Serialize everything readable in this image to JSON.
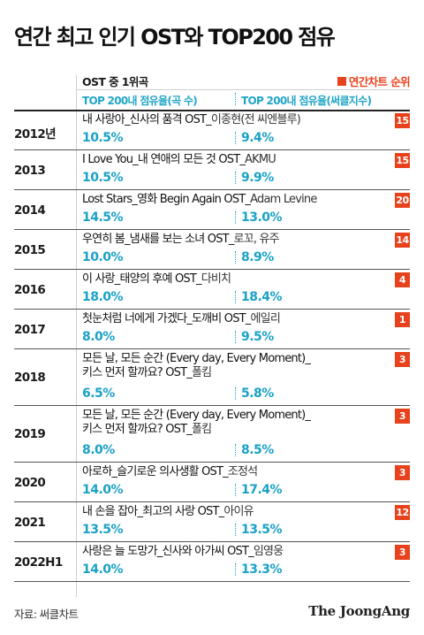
{
  "title": "연간 최고 인기 OST와 TOP200 점유",
  "header": {
    "ost_label": "OST 중 1위곡",
    "legend_label": "연간차트 순위",
    "col1_label": "TOP 200내 점유율(곡 수)",
    "col2_label": "TOP 200내 점유율(써클지수)"
  },
  "colors": {
    "accent_red": "#e8421c",
    "accent_blue": "#1aa2c6"
  },
  "rows": [
    {
      "year": "2012년",
      "song": "내 사랑아_신사의 품격 OST_",
      "artist": "이종현(전 씨엔블루)",
      "rank": "15",
      "share_count": "10.5%",
      "share_index": "9.4%"
    },
    {
      "year": "2013",
      "song": "I Love You_내 연애의 모든 것 OST_",
      "artist": "AKMU",
      "rank": "15",
      "share_count": "10.5%",
      "share_index": "9.9%"
    },
    {
      "year": "2014",
      "song": "Lost Stars_영화 Begin Again OST_",
      "artist": "Adam Levine",
      "rank": "20",
      "share_count": "14.5%",
      "share_index": "13.0%"
    },
    {
      "year": "2015",
      "song": "우연히 봄_냄새를 보는 소녀 OST_",
      "artist": "로꼬, 유주",
      "rank": "14",
      "share_count": "10.0%",
      "share_index": "8.9%"
    },
    {
      "year": "2016",
      "song": "이 사랑_태양의 후예 OST_",
      "artist": "다비치",
      "rank": "4",
      "share_count": "18.0%",
      "share_index": "18.4%"
    },
    {
      "year": "2017",
      "song": "첫눈처럼 너에게 가겠다_도깨비 OST_",
      "artist": "에일리",
      "rank": "1",
      "share_count": "8.0%",
      "share_index": "9.5%"
    },
    {
      "year": "2018",
      "song": "모든 날, 모든 순간 (Every day, Every Moment)_",
      "song2": "키스 먼저 할까요? OST_",
      "artist": "폴킴",
      "rank": "3",
      "share_count": "6.5%",
      "share_index": "5.8%"
    },
    {
      "year": "2019",
      "song": "모든 날, 모든 순간 (Every day, Every Moment)_",
      "song2": "키스 먼저 할까요? OST_",
      "artist": "폴킴",
      "rank": "3",
      "share_count": "8.0%",
      "share_index": "8.5%"
    },
    {
      "year": "2020",
      "song": "아로하_슬기로운 의사생활 OST_",
      "artist": "조정석",
      "rank": "3",
      "share_count": "14.0%",
      "share_index": "17.4%"
    },
    {
      "year": "2021",
      "song": "내 손을 잡아_최고의 사랑 OST_",
      "artist": "아이유",
      "rank": "12",
      "share_count": "13.5%",
      "share_index": "13.5%"
    },
    {
      "year": "2022H1",
      "song": "사랑은 늘 도망가_신사와 아가씨 OST_",
      "artist": "임영웅",
      "rank": "3",
      "share_count": "14.0%",
      "share_index": "13.3%"
    }
  ],
  "footer": {
    "source": "자료: 써클차트",
    "brand": "The JoongAng"
  }
}
